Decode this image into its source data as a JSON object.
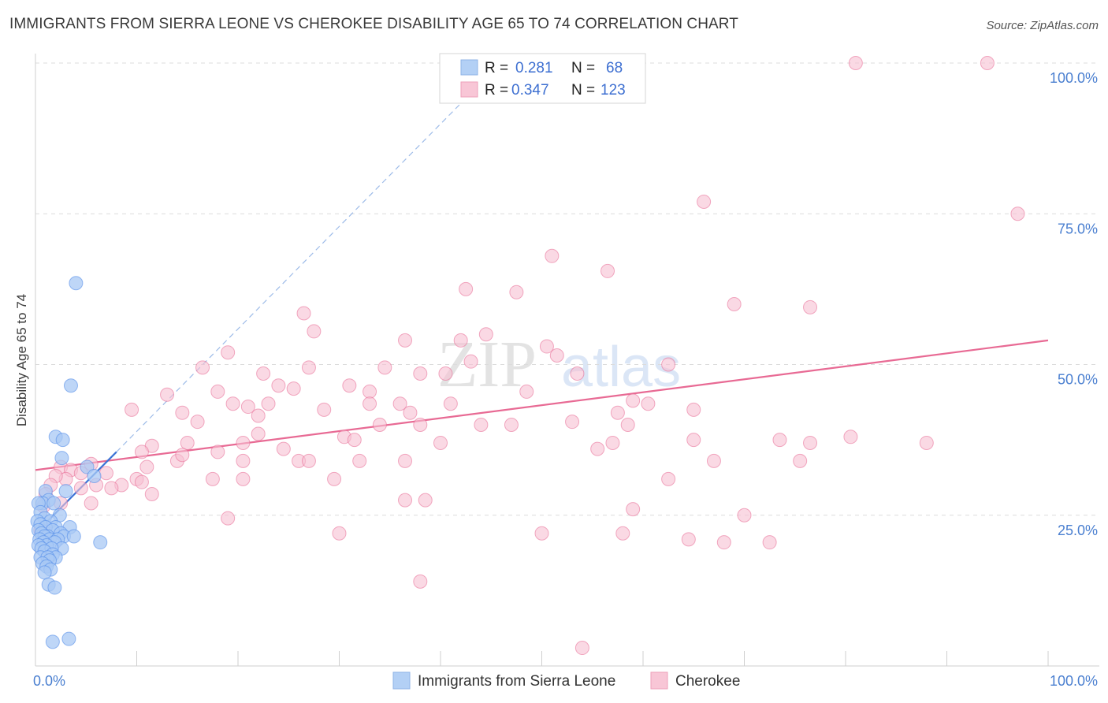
{
  "title": "IMMIGRANTS FROM SIERRA LEONE VS CHEROKEE DISABILITY AGE 65 TO 74 CORRELATION CHART",
  "source": "Source: ZipAtlas.com",
  "watermark": {
    "zip": "ZIP",
    "atlas": "atlas"
  },
  "legend_top": [
    {
      "r_label": "R =",
      "r_value": "0.281",
      "n_label": "N =",
      "n_value": "68"
    },
    {
      "r_label": "R =",
      "r_value": "0.347",
      "n_label": "N =",
      "n_value": "123"
    }
  ],
  "chart_data": {
    "type": "scatter",
    "title": "IMMIGRANTS FROM SIERRA LEONE VS CHEROKEE DISABILITY AGE 65 TO 74 CORRELATION CHART",
    "xlabel": "",
    "ylabel": "Disability Age 65 to 74",
    "xlim": [
      0,
      100
    ],
    "ylim": [
      0,
      100
    ],
    "x_tick_labels": [
      "0.0%",
      "100.0%"
    ],
    "y_tick_labels": [
      "25.0%",
      "50.0%",
      "75.0%",
      "100.0%"
    ],
    "y_ticks": [
      25,
      50,
      75,
      100
    ],
    "grid": true,
    "legend_position": "bottom-center",
    "series": [
      {
        "name": "Immigrants from Sierra Leone",
        "color": "#4a86e8",
        "fill": "#a8c8f4",
        "R": 0.281,
        "N": 68,
        "trend": {
          "x": [
            0,
            8.0
          ],
          "y": [
            22.0,
            35.5
          ]
        },
        "trend_extended": {
          "x": [
            8.0,
            43.0
          ],
          "y": [
            35.5,
            95.0
          ]
        },
        "points": [
          [
            4.0,
            63.5
          ],
          [
            3.5,
            46.5
          ],
          [
            2.0,
            38.0
          ],
          [
            2.7,
            37.5
          ],
          [
            2.6,
            34.5
          ],
          [
            5.1,
            33.0
          ],
          [
            5.8,
            31.5
          ],
          [
            3.0,
            29.0
          ],
          [
            1.0,
            29.0
          ],
          [
            1.3,
            27.5
          ],
          [
            0.7,
            27.0
          ],
          [
            1.8,
            27.0
          ],
          [
            0.3,
            27.0
          ],
          [
            0.5,
            25.5
          ],
          [
            2.4,
            25.0
          ],
          [
            0.9,
            24.5
          ],
          [
            0.2,
            24.0
          ],
          [
            1.5,
            24.0
          ],
          [
            0.5,
            23.5
          ],
          [
            3.4,
            23.0
          ],
          [
            2.0,
            23.0
          ],
          [
            1.0,
            23.0
          ],
          [
            0.3,
            22.5
          ],
          [
            1.7,
            22.5
          ],
          [
            2.5,
            22.0
          ],
          [
            0.6,
            22.0
          ],
          [
            1.2,
            21.5
          ],
          [
            0.9,
            21.5
          ],
          [
            2.8,
            21.5
          ],
          [
            3.8,
            21.5
          ],
          [
            1.4,
            21.0
          ],
          [
            0.4,
            21.0
          ],
          [
            2.2,
            21.0
          ],
          [
            0.8,
            20.5
          ],
          [
            1.9,
            20.5
          ],
          [
            6.4,
            20.5
          ],
          [
            1.1,
            20.0
          ],
          [
            0.3,
            20.0
          ],
          [
            0.6,
            19.5
          ],
          [
            2.6,
            19.5
          ],
          [
            1.6,
            19.5
          ],
          [
            0.9,
            19.0
          ],
          [
            1.7,
            18.5
          ],
          [
            2.0,
            18.0
          ],
          [
            0.5,
            18.0
          ],
          [
            1.2,
            18.0
          ],
          [
            1.4,
            17.5
          ],
          [
            0.7,
            17.0
          ],
          [
            1.1,
            16.5
          ],
          [
            1.5,
            16.0
          ],
          [
            0.9,
            15.5
          ],
          [
            1.3,
            13.5
          ],
          [
            1.9,
            13.0
          ],
          [
            1.7,
            4.0
          ],
          [
            3.3,
            4.5
          ]
        ]
      },
      {
        "name": "Cherokee",
        "color": "#e86a94",
        "fill": "#f7bfd2",
        "R": 0.347,
        "N": 123,
        "trend": {
          "x": [
            0,
            100
          ],
          "y": [
            32.5,
            54.0
          ]
        },
        "points": [
          [
            81.0,
            100.0
          ],
          [
            94.0,
            100.0
          ],
          [
            66.0,
            77.0
          ],
          [
            97.0,
            75.0
          ],
          [
            51.0,
            68.0
          ],
          [
            56.5,
            65.5
          ],
          [
            42.5,
            62.5
          ],
          [
            47.5,
            62.0
          ],
          [
            69.0,
            60.0
          ],
          [
            76.5,
            59.5
          ],
          [
            26.5,
            58.5
          ],
          [
            27.5,
            55.5
          ],
          [
            36.5,
            54.0
          ],
          [
            42.0,
            54.0
          ],
          [
            44.5,
            55.0
          ],
          [
            50.5,
            53.0
          ],
          [
            51.5,
            51.5
          ],
          [
            19.0,
            52.0
          ],
          [
            27.0,
            49.5
          ],
          [
            34.5,
            49.5
          ],
          [
            38.0,
            48.5
          ],
          [
            40.5,
            48.5
          ],
          [
            43.0,
            50.5
          ],
          [
            53.5,
            48.5
          ],
          [
            62.5,
            50.0
          ],
          [
            16.5,
            49.5
          ],
          [
            22.5,
            48.5
          ],
          [
            24.0,
            46.5
          ],
          [
            25.5,
            46.0
          ],
          [
            31.0,
            46.5
          ],
          [
            33.0,
            45.5
          ],
          [
            18.0,
            45.5
          ],
          [
            13.0,
            45.0
          ],
          [
            19.5,
            43.5
          ],
          [
            21.0,
            43.0
          ],
          [
            23.0,
            43.5
          ],
          [
            33.0,
            43.5
          ],
          [
            36.0,
            43.5
          ],
          [
            41.0,
            43.5
          ],
          [
            48.5,
            45.5
          ],
          [
            59.0,
            44.0
          ],
          [
            57.5,
            42.0
          ],
          [
            14.5,
            42.0
          ],
          [
            9.5,
            42.5
          ],
          [
            16.0,
            40.5
          ],
          [
            22.0,
            41.5
          ],
          [
            28.5,
            42.5
          ],
          [
            37.0,
            42.0
          ],
          [
            60.5,
            43.5
          ],
          [
            65.0,
            42.5
          ],
          [
            34.0,
            40.0
          ],
          [
            38.0,
            40.0
          ],
          [
            44.0,
            40.0
          ],
          [
            47.0,
            40.0
          ],
          [
            53.0,
            40.5
          ],
          [
            58.5,
            40.0
          ],
          [
            73.5,
            37.5
          ],
          [
            80.5,
            38.0
          ],
          [
            88.0,
            37.0
          ],
          [
            76.5,
            37.0
          ],
          [
            65.0,
            37.5
          ],
          [
            57.0,
            37.0
          ],
          [
            55.5,
            36.0
          ],
          [
            40.0,
            37.0
          ],
          [
            30.5,
            38.0
          ],
          [
            31.5,
            37.5
          ],
          [
            22.0,
            38.5
          ],
          [
            20.5,
            37.0
          ],
          [
            15.0,
            37.0
          ],
          [
            11.5,
            36.5
          ],
          [
            18.0,
            35.5
          ],
          [
            24.5,
            36.0
          ],
          [
            11.0,
            33.0
          ],
          [
            14.0,
            34.0
          ],
          [
            14.5,
            35.0
          ],
          [
            10.5,
            35.5
          ],
          [
            20.5,
            34.0
          ],
          [
            26.0,
            34.0
          ],
          [
            27.0,
            34.0
          ],
          [
            32.0,
            34.0
          ],
          [
            36.5,
            34.0
          ],
          [
            67.0,
            34.0
          ],
          [
            75.5,
            34.0
          ],
          [
            7.0,
            32.0
          ],
          [
            5.5,
            33.5
          ],
          [
            2.5,
            33.0
          ],
          [
            3.5,
            32.5
          ],
          [
            4.5,
            32.0
          ],
          [
            3.0,
            31.0
          ],
          [
            2.0,
            31.5
          ],
          [
            1.5,
            30.0
          ],
          [
            10.0,
            31.0
          ],
          [
            10.5,
            30.5
          ],
          [
            17.5,
            31.0
          ],
          [
            20.5,
            31.0
          ],
          [
            29.5,
            31.0
          ],
          [
            62.5,
            31.0
          ],
          [
            4.5,
            29.5
          ],
          [
            6.0,
            30.0
          ],
          [
            8.5,
            30.0
          ],
          [
            7.5,
            29.5
          ],
          [
            1.0,
            28.5
          ],
          [
            11.5,
            28.5
          ],
          [
            36.5,
            27.5
          ],
          [
            38.5,
            27.5
          ],
          [
            5.5,
            27.0
          ],
          [
            2.5,
            27.0
          ],
          [
            0.8,
            26.5
          ],
          [
            59.0,
            26.0
          ],
          [
            70.0,
            25.0
          ],
          [
            19.0,
            24.5
          ],
          [
            30.0,
            22.0
          ],
          [
            50.0,
            22.0
          ],
          [
            58.0,
            22.0
          ],
          [
            64.5,
            21.0
          ],
          [
            68.0,
            20.5
          ],
          [
            72.5,
            20.5
          ],
          [
            38.0,
            14.0
          ],
          [
            54.0,
            3.0
          ],
          [
            0.5,
            22.5
          ]
        ]
      }
    ]
  }
}
